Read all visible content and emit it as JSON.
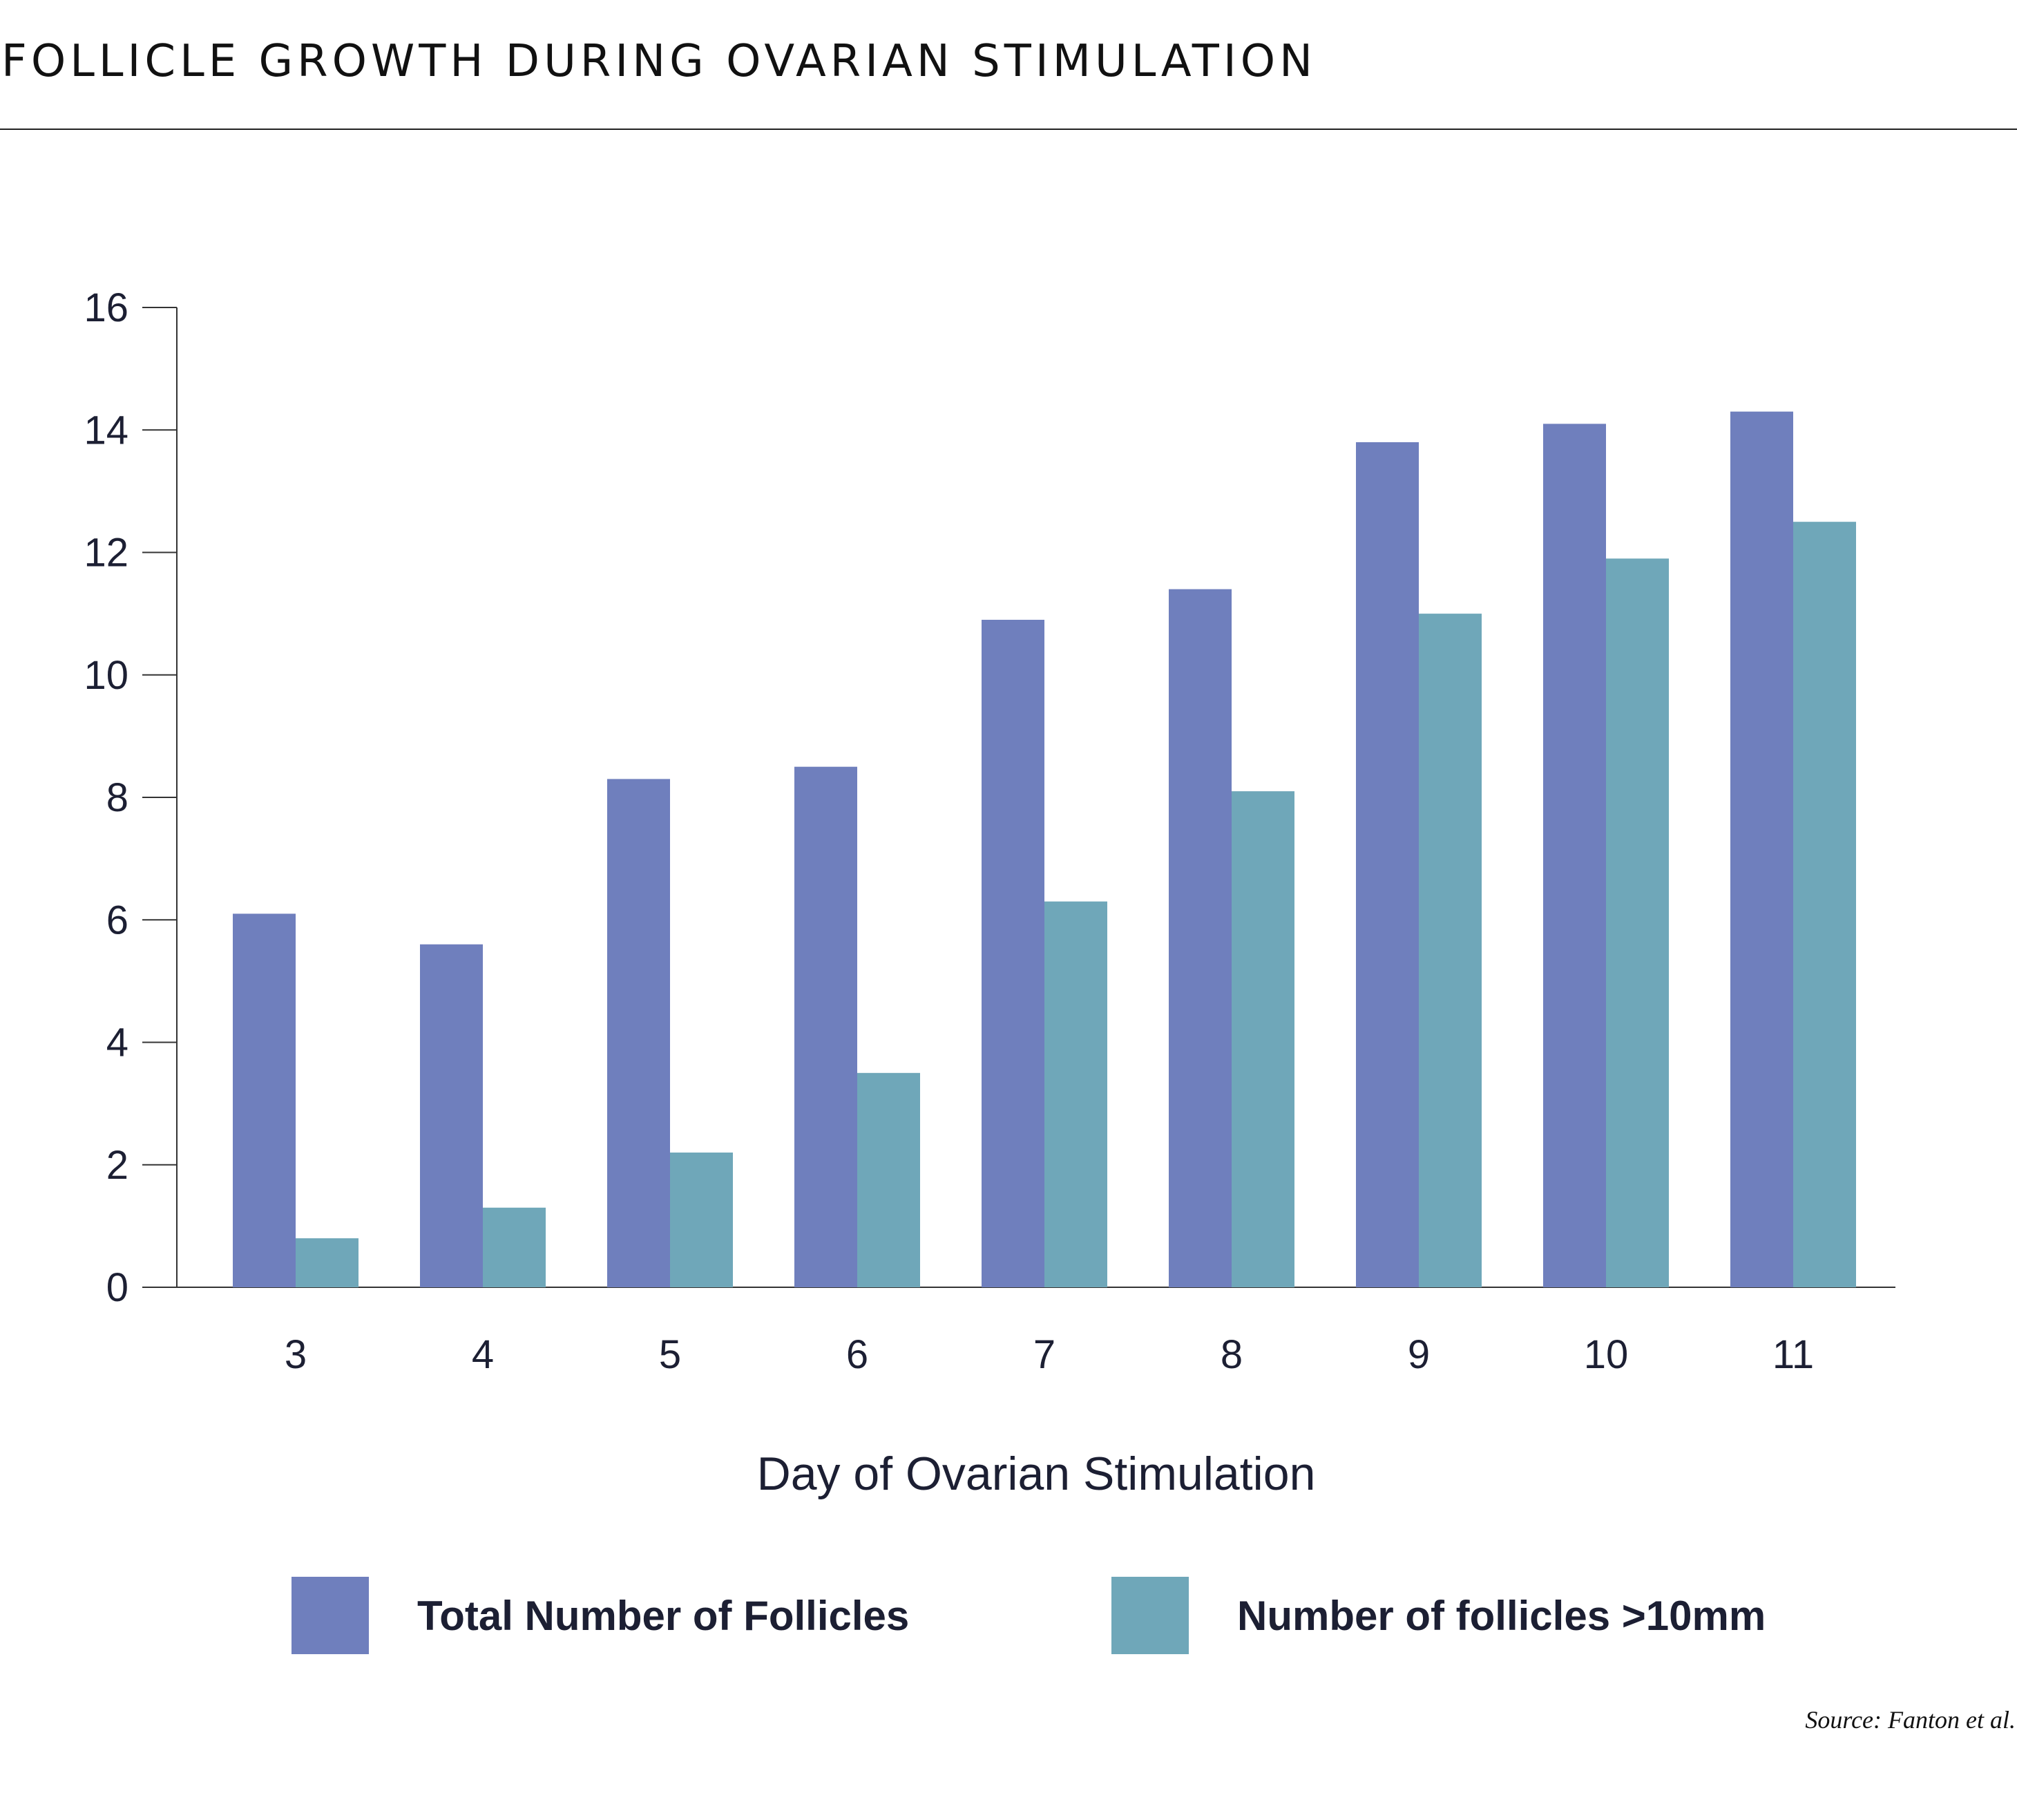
{
  "page_title": "FOLLICLE GROWTH DURING OVARIAN STIMULATION",
  "source": "Source: Fanton et al.",
  "colors": {
    "total": "#6f7fbd",
    "over10": "#6fa7b9",
    "axis": "#333333",
    "text": "#1c1f33"
  },
  "chart_data": {
    "type": "bar",
    "title": "FOLLICLE GROWTH DURING OVARIAN STIMULATION",
    "xlabel": "Day of Ovarian Stimulation",
    "ylabel": "",
    "ylim": [
      0,
      16
    ],
    "yticks": [
      0,
      2,
      4,
      6,
      8,
      10,
      12,
      14,
      16
    ],
    "categories": [
      "3",
      "4",
      "5",
      "6",
      "7",
      "8",
      "9",
      "10",
      "11"
    ],
    "series": [
      {
        "name": "Total Number of Follicles",
        "values": [
          6.1,
          5.6,
          8.3,
          8.5,
          10.9,
          11.4,
          13.8,
          14.1,
          14.3
        ]
      },
      {
        "name": "Number of follicles >10mm",
        "values": [
          0.8,
          1.3,
          2.2,
          3.5,
          6.3,
          8.1,
          11.0,
          11.9,
          12.5
        ]
      }
    ],
    "legend_position": "bottom",
    "grid": false
  }
}
